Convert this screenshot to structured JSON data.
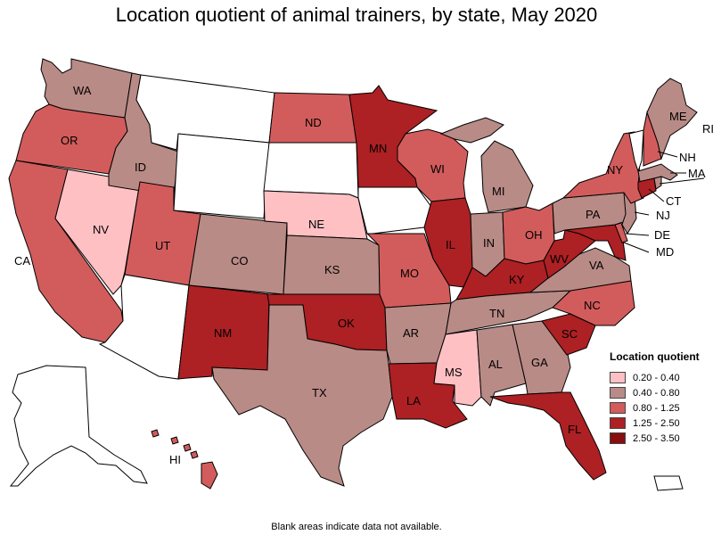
{
  "title": "Location quotient of animal trainers, by state, May 2020",
  "footnote": "Blank areas indicate data not available.",
  "legend": {
    "title": "Location quotient",
    "items": [
      {
        "label": "0.20 - 0.40",
        "color": "#ffc0c4"
      },
      {
        "label": "0.40 - 0.80",
        "color": "#b98b86"
      },
      {
        "label": "0.80 - 1.25",
        "color": "#d25c5c"
      },
      {
        "label": "1.25 - 2.50",
        "color": "#ad2023"
      },
      {
        "label": "2.50 - 3.50",
        "color": "#870f0f"
      }
    ]
  },
  "states": {
    "WA": {
      "label": "WA",
      "class": "0.40 - 0.80"
    },
    "OR": {
      "label": "OR",
      "class": "0.80 - 1.25"
    },
    "CA": {
      "label": "CA",
      "class": "0.80 - 1.25"
    },
    "NV": {
      "label": "NV",
      "class": "0.20 - 0.40"
    },
    "ID": {
      "label": "ID",
      "class": "0.40 - 0.80"
    },
    "MT": {
      "label": "",
      "class": "no data"
    },
    "WY": {
      "label": "",
      "class": "no data"
    },
    "UT": {
      "label": "UT",
      "class": "0.80 - 1.25"
    },
    "AZ": {
      "label": "",
      "class": "no data"
    },
    "CO": {
      "label": "CO",
      "class": "0.40 - 0.80"
    },
    "NM": {
      "label": "NM",
      "class": "1.25 - 2.50"
    },
    "ND": {
      "label": "ND",
      "class": "0.80 - 1.25"
    },
    "SD": {
      "label": "",
      "class": "no data"
    },
    "NE": {
      "label": "NE",
      "class": "0.20 - 0.40"
    },
    "KS": {
      "label": "KS",
      "class": "0.40 - 0.80"
    },
    "OK": {
      "label": "OK",
      "class": "1.25 - 2.50"
    },
    "TX": {
      "label": "TX",
      "class": "0.40 - 0.80"
    },
    "MN": {
      "label": "MN",
      "class": "1.25 - 2.50"
    },
    "IA": {
      "label": "",
      "class": "no data"
    },
    "MO": {
      "label": "MO",
      "class": "0.80 - 1.25"
    },
    "AR": {
      "label": "AR",
      "class": "0.40 - 0.80"
    },
    "LA": {
      "label": "LA",
      "class": "1.25 - 2.50"
    },
    "WI": {
      "label": "WI",
      "class": "0.80 - 1.25"
    },
    "IL": {
      "label": "IL",
      "class": "1.25 - 2.50"
    },
    "MI": {
      "label": "MI",
      "class": "0.40 - 0.80"
    },
    "IN": {
      "label": "IN",
      "class": "0.40 - 0.80"
    },
    "OH": {
      "label": "OH",
      "class": "0.80 - 1.25"
    },
    "KY": {
      "label": "KY",
      "class": "1.25 - 2.50"
    },
    "TN": {
      "label": "TN",
      "class": "0.40 - 0.80"
    },
    "MS": {
      "label": "MS",
      "class": "0.20 - 0.40"
    },
    "AL": {
      "label": "AL",
      "class": "0.40 - 0.80"
    },
    "GA": {
      "label": "GA",
      "class": "0.40 - 0.80"
    },
    "FL": {
      "label": "FL",
      "class": "1.25 - 2.50"
    },
    "SC": {
      "label": "SC",
      "class": "1.25 - 2.50"
    },
    "NC": {
      "label": "NC",
      "class": "0.80 - 1.25"
    },
    "VA": {
      "label": "VA",
      "class": "0.40 - 0.80"
    },
    "WV": {
      "label": "WV",
      "class": "1.25 - 2.50"
    },
    "PA": {
      "label": "PA",
      "class": "0.40 - 0.80"
    },
    "NY": {
      "label": "NY",
      "class": "0.80 - 1.25"
    },
    "VT": {
      "label": "",
      "class": "no data"
    },
    "NH": {
      "label": "NH",
      "class": "0.80 - 1.25"
    },
    "ME": {
      "label": "ME",
      "class": "0.40 - 0.80"
    },
    "MA": {
      "label": "MA",
      "class": "0.40 - 0.80"
    },
    "RI": {
      "label": "RI",
      "class": "0.40 - 0.80"
    },
    "CT": {
      "label": "CT",
      "class": "1.25 - 2.50"
    },
    "NJ": {
      "label": "NJ",
      "class": "0.40 - 0.80"
    },
    "DE": {
      "label": "DE",
      "class": "0.80 - 1.25"
    },
    "MD": {
      "label": "MD",
      "class": "1.25 - 2.50"
    },
    "AK": {
      "label": "",
      "class": "no data"
    },
    "HI": {
      "label": "HI",
      "class": "0.80 - 1.25"
    },
    "PR": {
      "label": "",
      "class": "no data"
    }
  }
}
